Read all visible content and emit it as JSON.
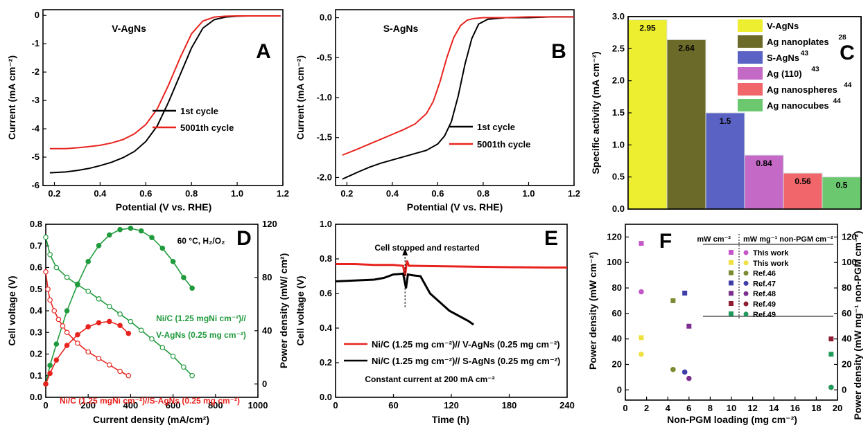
{
  "chart_data": [
    {
      "panel": "A",
      "type": "line",
      "annotation": "V-AgNs",
      "xlabel": "Potential (V vs. RHE)",
      "ylabel": "Current (mA cm⁻²)",
      "xlim": [
        0.15,
        1.2
      ],
      "ylim": [
        -6,
        0.2
      ],
      "xticks": [
        "0.2",
        "0.4",
        "0.6",
        "0.8",
        "1.0",
        "1.2"
      ],
      "yticks": [
        "-6",
        "-5",
        "-4",
        "-3",
        "-2",
        "-1",
        "0"
      ],
      "legend": [
        "1st cycle",
        "5001th cycle"
      ],
      "legend_position": "bottom-right",
      "series": [
        {
          "name": "1st cycle",
          "color": "#000000",
          "x": [
            0.18,
            0.25,
            0.3,
            0.35,
            0.4,
            0.45,
            0.5,
            0.55,
            0.6,
            0.65,
            0.7,
            0.75,
            0.8,
            0.85,
            0.9,
            0.95,
            1.0,
            1.05,
            1.1,
            1.15,
            1.19
          ],
          "y": [
            -5.55,
            -5.52,
            -5.47,
            -5.4,
            -5.3,
            -5.18,
            -5.02,
            -4.8,
            -4.45,
            -3.9,
            -3.05,
            -2.1,
            -1.15,
            -0.45,
            -0.15,
            -0.06,
            -0.03,
            -0.02,
            -0.02,
            -0.02,
            -0.02
          ]
        },
        {
          "name": "5001th cycle",
          "color": "#e8231e",
          "x": [
            0.18,
            0.25,
            0.3,
            0.35,
            0.4,
            0.45,
            0.5,
            0.55,
            0.6,
            0.65,
            0.7,
            0.75,
            0.8,
            0.85,
            0.9,
            0.95,
            1.0,
            1.05,
            1.1,
            1.15,
            1.19
          ],
          "y": [
            -4.7,
            -4.7,
            -4.67,
            -4.63,
            -4.58,
            -4.5,
            -4.38,
            -4.18,
            -3.85,
            -3.3,
            -2.45,
            -1.5,
            -0.65,
            -0.2,
            -0.06,
            -0.03,
            -0.02,
            -0.02,
            -0.02,
            -0.02,
            -0.02
          ]
        }
      ]
    },
    {
      "panel": "B",
      "type": "line",
      "annotation": "S-AgNs",
      "xlabel": "Potential (V vs. RHE)",
      "ylabel": "Current (mA cm⁻²)",
      "xlim": [
        0.15,
        1.2
      ],
      "ylim": [
        -2.1,
        0.1
      ],
      "xticks": [
        "0.2",
        "0.4",
        "0.6",
        "0.8",
        "1.0",
        "1.2"
      ],
      "yticks": [
        "-2.0",
        "-1.5",
        "-1.0",
        "-0.5",
        "0.0"
      ],
      "legend": [
        "1st cycle",
        "5001th cycle"
      ],
      "legend_position": "bottom-right",
      "series": [
        {
          "name": "1st cycle",
          "color": "#000000",
          "x": [
            0.18,
            0.25,
            0.3,
            0.35,
            0.4,
            0.45,
            0.5,
            0.55,
            0.6,
            0.63,
            0.66,
            0.69,
            0.72,
            0.75,
            0.78,
            0.82,
            0.9,
            1.0,
            1.1,
            1.2
          ],
          "y": [
            -2.02,
            -1.93,
            -1.87,
            -1.82,
            -1.78,
            -1.74,
            -1.7,
            -1.66,
            -1.58,
            -1.48,
            -1.3,
            -0.98,
            -0.58,
            -0.26,
            -0.08,
            -0.02,
            0.0,
            0.0,
            0.01,
            0.01
          ]
        },
        {
          "name": "5001th cycle",
          "color": "#e8231e",
          "x": [
            0.18,
            0.25,
            0.3,
            0.35,
            0.4,
            0.45,
            0.5,
            0.55,
            0.58,
            0.61,
            0.64,
            0.67,
            0.7,
            0.73,
            0.76,
            0.8,
            0.9,
            1.0,
            1.1,
            1.2
          ],
          "y": [
            -1.72,
            -1.64,
            -1.58,
            -1.52,
            -1.46,
            -1.4,
            -1.33,
            -1.2,
            -1.05,
            -0.8,
            -0.5,
            -0.25,
            -0.1,
            -0.03,
            -0.01,
            0.0,
            0.0,
            0.01,
            0.01,
            0.01
          ]
        }
      ]
    },
    {
      "panel": "C",
      "type": "bar",
      "ylabel": "Specific activity (mA cm⁻²)",
      "ylim": [
        0,
        3.0
      ],
      "yticks": [
        "0.0",
        "0.5",
        "1.0",
        "1.5",
        "2.0",
        "2.5",
        "3.0"
      ],
      "categories": [
        "V-AgNs",
        "Ag nanoplates",
        "S-AgNs",
        "Ag (110)",
        "Ag nanospheres",
        "Ag nanocubes"
      ],
      "category_refs": [
        "",
        "28",
        "43",
        "43",
        "44",
        "44"
      ],
      "values": [
        2.95,
        2.64,
        1.5,
        0.84,
        0.56,
        0.5
      ],
      "value_labels": [
        "2.95",
        "2.64",
        "1.5",
        "0.84",
        "0.56",
        "0.5"
      ],
      "colors": [
        "#eeee30",
        "#6b6a28",
        "#5a63c4",
        "#c569c7",
        "#f0666a",
        "#6cc86f"
      ],
      "legend_position": "top-right"
    },
    {
      "panel": "D",
      "type": "line",
      "annotation": "60 °C, H₂/O₂",
      "xlabel": "Current density (mA/cm²)",
      "ylabel": "Cell voltage (V)",
      "y2label": "Power density (mW/ cm²)",
      "xlim": [
        0,
        1000
      ],
      "ylim": [
        0,
        0.8
      ],
      "y2lim": [
        -10,
        120
      ],
      "xticks": [
        "0",
        "200",
        "400",
        "600",
        "800",
        "1000"
      ],
      "yticks": [
        "0.0",
        "0.1",
        "0.2",
        "0.3",
        "0.4",
        "0.5",
        "0.6",
        "0.7",
        "0.8"
      ],
      "y2ticks": [
        "0",
        "40",
        "80",
        "120"
      ],
      "series": [
        {
          "name": "Ni/C (1.25 mgNi cm⁻²)// V-AgNs (0.25 mg cm⁻²)",
          "color": "#1f9a3c",
          "kind": "voltage",
          "x": [
            0,
            20,
            50,
            100,
            150,
            200,
            250,
            300,
            350,
            400,
            450,
            500,
            550,
            600,
            650,
            690
          ],
          "y": [
            0.74,
            0.66,
            0.6,
            0.555,
            0.52,
            0.49,
            0.455,
            0.42,
            0.385,
            0.35,
            0.31,
            0.27,
            0.23,
            0.19,
            0.14,
            0.1
          ]
        },
        {
          "name": "Ni/C (1.25 mgNi cm⁻²)// V-AgNs (0.25 mg cm⁻²)",
          "color": "#1f9a3c",
          "kind": "power",
          "x": [
            0,
            20,
            50,
            100,
            150,
            200,
            250,
            300,
            350,
            400,
            450,
            500,
            550,
            600,
            650,
            690
          ],
          "y": [
            0,
            14,
            30,
            55,
            75,
            92,
            104,
            112,
            116,
            117,
            115,
            110,
            102,
            92,
            80,
            72
          ]
        },
        {
          "name": "Ni/C (1.25 mgNi cm⁻²)//S-AgNs (0.25 mg cm⁻²)",
          "color": "#e8231e",
          "kind": "voltage",
          "x": [
            0,
            10,
            20,
            40,
            60,
            80,
            100,
            150,
            200,
            250,
            300,
            350,
            390
          ],
          "y": [
            0.58,
            0.5,
            0.45,
            0.4,
            0.36,
            0.33,
            0.3,
            0.25,
            0.21,
            0.18,
            0.15,
            0.12,
            0.1
          ]
        },
        {
          "name": "Ni/C (1.25 mgNi cm⁻²)//S-AgNs (0.25 mg cm⁻²)",
          "color": "#e8231e",
          "kind": "power",
          "x": [
            0,
            20,
            50,
            100,
            150,
            200,
            250,
            300,
            350,
            390
          ],
          "y": [
            0,
            8,
            18,
            29,
            37,
            43,
            46,
            47,
            44,
            38
          ]
        }
      ],
      "labels": {
        "green_line1": "Ni/C (1.25 mgNi cm⁻²)//",
        "green_line2": "V-AgNs (0.25 mg cm⁻²)",
        "red": "Ni/C (1.25 mgNi cm⁻²)//S-AgNs (0.25 mg cm⁻²)"
      }
    },
    {
      "panel": "E",
      "type": "line",
      "xlabel": "Time (h)",
      "ylabel": "Cell voltage (V)",
      "xlim": [
        0,
        240
      ],
      "ylim": [
        0,
        1.0
      ],
      "xticks": [
        "0",
        "60",
        "120",
        "180",
        "240"
      ],
      "yticks": [
        "0.0",
        "0.2",
        "0.4",
        "0.6",
        "0.8",
        "1.0"
      ],
      "annotation": "Cell stopped and restarted",
      "footnote": "Constant current at 200 mA cm⁻²",
      "legend": [
        "Ni/C (1.25 mg cm⁻²)// V-AgNs (0.25 mg cm⁻²)",
        "Ni/C (1.25 mg cm⁻²)// S-AgNs (0.25 mg cm⁻²)"
      ],
      "series": [
        {
          "name": "Ni/C (1.25 mg cm⁻²)// V-AgNs (0.25 mg cm⁻²)",
          "color": "#e8231e",
          "x": [
            0,
            20,
            40,
            60,
            70,
            72,
            74,
            76,
            80,
            100,
            140,
            180,
            220,
            240
          ],
          "y": [
            0.77,
            0.77,
            0.765,
            0.765,
            0.76,
            0.7,
            0.79,
            0.76,
            0.76,
            0.758,
            0.755,
            0.752,
            0.75,
            0.75
          ]
        },
        {
          "name": "Ni/C (1.25 mg cm⁻²)// S-AgNs (0.25 mg cm⁻²)",
          "color": "#000000",
          "x": [
            0,
            20,
            40,
            50,
            60,
            65,
            70,
            73,
            75,
            80,
            88,
            98,
            108,
            118,
            128,
            138,
            143
          ],
          "y": [
            0.67,
            0.675,
            0.68,
            0.69,
            0.71,
            0.712,
            0.715,
            0.63,
            0.71,
            0.705,
            0.7,
            0.6,
            0.55,
            0.5,
            0.47,
            0.44,
            0.42
          ]
        }
      ]
    },
    {
      "panel": "F",
      "type": "scatter",
      "xlabel": "Non-PGM loading (mg cm⁻²)",
      "ylabel": "Power density (mW cm⁻²)",
      "y2label": "Power density (mW mg⁻¹ non-PGM cm⁻²)",
      "xlim": [
        0,
        20
      ],
      "ylim": [
        -8,
        130
      ],
      "xticks": [
        "0",
        "2",
        "4",
        "6",
        "8",
        "10",
        "12",
        "14",
        "16",
        "18",
        "20"
      ],
      "yticks": [
        "0",
        "20",
        "40",
        "60",
        "80",
        "100",
        "120"
      ],
      "y2ticks": [
        "0",
        "20",
        "40",
        "60",
        "80",
        "100",
        "120"
      ],
      "legend_header_left": "mW cm⁻²",
      "legend_header_right": "mW mg⁻¹ non-PGM cm⁻²",
      "legend_rows": [
        {
          "label": "This work",
          "color": "#c555c9"
        },
        {
          "label": "This work",
          "color": "#f0e040"
        },
        {
          "label": "Ref.46",
          "color": "#7d8a32"
        },
        {
          "label": "Ref.47",
          "color": "#3d3ea8"
        },
        {
          "label": "Ref.48",
          "color": "#7b2f8f"
        },
        {
          "label": "Ref.49",
          "color": "#8f1e35"
        },
        {
          "label": "Ref.49",
          "color": "#1f9a5a"
        }
      ],
      "series": [
        {
          "name": "This work",
          "marker": "square",
          "color": "#c555c9",
          "x": [
            1.5
          ],
          "y": [
            115
          ]
        },
        {
          "name": "This work",
          "marker": "circle",
          "color": "#c555c9",
          "x": [
            1.5
          ],
          "y": [
            77
          ]
        },
        {
          "name": "This work",
          "marker": "square",
          "color": "#f0e040",
          "x": [
            1.5
          ],
          "y": [
            41
          ]
        },
        {
          "name": "This work",
          "marker": "circle",
          "color": "#f0e040",
          "x": [
            1.5
          ],
          "y": [
            28
          ]
        },
        {
          "name": "Ref.46",
          "marker": "square",
          "color": "#7d8a32",
          "x": [
            4.5
          ],
          "y": [
            70
          ]
        },
        {
          "name": "Ref.46",
          "marker": "circle",
          "color": "#7d8a32",
          "x": [
            4.5
          ],
          "y": [
            16
          ]
        },
        {
          "name": "Ref.47",
          "marker": "square",
          "color": "#3d3ea8",
          "x": [
            5.6
          ],
          "y": [
            76
          ]
        },
        {
          "name": "Ref.47",
          "marker": "circle",
          "color": "#3d3ea8",
          "x": [
            5.6
          ],
          "y": [
            14
          ]
        },
        {
          "name": "Ref.48",
          "marker": "square",
          "color": "#7b2f8f",
          "x": [
            6.0
          ],
          "y": [
            50
          ]
        },
        {
          "name": "Ref.48",
          "marker": "circle",
          "color": "#7b2f8f",
          "x": [
            6.0
          ],
          "y": [
            9
          ]
        },
        {
          "name": "Ref.49",
          "marker": "square",
          "color": "#8f1e35",
          "x": [
            19.4
          ],
          "y": [
            40
          ]
        },
        {
          "name": "Ref.49",
          "marker": "circle",
          "color": "#8f1e35",
          "x": [
            19.4
          ],
          "y": [
            2
          ]
        },
        {
          "name": "Ref.49",
          "marker": "square",
          "color": "#1f9a5a",
          "x": [
            19.4
          ],
          "y": [
            28
          ]
        },
        {
          "name": "Ref.49",
          "marker": "circle",
          "color": "#1f9a5a",
          "x": [
            19.4
          ],
          "y": [
            2
          ]
        }
      ]
    }
  ]
}
